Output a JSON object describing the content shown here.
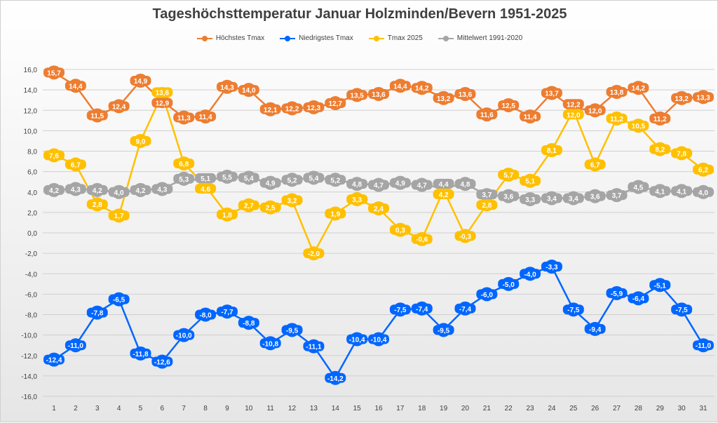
{
  "chart_data": {
    "type": "line",
    "title": "Tageshöchsttemperatur Januar Holzminden/Bevern 1951-2025",
    "xlabel": "",
    "ylabel": "",
    "x": [
      1,
      2,
      3,
      4,
      5,
      6,
      7,
      8,
      9,
      10,
      11,
      12,
      13,
      14,
      15,
      16,
      17,
      18,
      19,
      20,
      21,
      22,
      23,
      24,
      25,
      26,
      27,
      28,
      29,
      30,
      31
    ],
    "ylim": [
      -16,
      16
    ],
    "yticks": [
      "16,0",
      "14,0",
      "12,0",
      "10,0",
      "8,0",
      "6,0",
      "4,0",
      "2,0",
      "0,0",
      "-2,0",
      "-4,0",
      "-6,0",
      "-8,0",
      "-10,0",
      "-12,0",
      "-14,0",
      "-16,0"
    ],
    "grid": true,
    "legend_position": "top",
    "series": [
      {
        "name": "Höchstes Tmax",
        "color": "#ED7D31",
        "values": [
          15.7,
          14.4,
          11.5,
          12.4,
          14.9,
          12.9,
          11.3,
          11.4,
          14.3,
          14.0,
          12.1,
          12.2,
          12.3,
          12.7,
          13.5,
          13.6,
          14.4,
          14.2,
          13.2,
          13.6,
          11.6,
          12.5,
          11.4,
          13.7,
          12.2,
          12.0,
          13.8,
          14.2,
          11.2,
          13.2,
          13.3
        ]
      },
      {
        "name": "Niedrigstes Tmax",
        "color": "#0066FF",
        "values": [
          -12.4,
          -11.0,
          -7.8,
          -6.5,
          -11.8,
          -12.6,
          -10.0,
          -8.0,
          -7.7,
          -8.8,
          -10.8,
          -9.5,
          -11.1,
          -14.2,
          -10.4,
          -10.4,
          -7.5,
          -7.4,
          -9.5,
          -7.4,
          -6.0,
          -5.0,
          -4.0,
          -3.3,
          -7.5,
          -9.4,
          -5.9,
          -6.4,
          -5.1,
          -7.5,
          -11.0
        ]
      },
      {
        "name": "Tmax 2025",
        "color": "#FFC000",
        "values": [
          7.6,
          6.7,
          2.8,
          1.7,
          9.0,
          13.6,
          6.8,
          4.6,
          1.8,
          2.7,
          2.5,
          3.2,
          -2.0,
          1.9,
          3.3,
          2.4,
          0.3,
          -0.6,
          4.2,
          -0.3,
          2.8,
          5.7,
          5.1,
          8.1,
          12.0,
          6.7,
          11.2,
          10.5,
          8.2,
          7.8,
          6.2
        ]
      },
      {
        "name": "Mittelwert 1991-2020",
        "color": "#A5A5A5",
        "values": [
          4.2,
          4.3,
          4.2,
          4.0,
          4.2,
          4.3,
          5.3,
          5.1,
          5.5,
          5.4,
          4.9,
          5.2,
          5.4,
          5.2,
          4.8,
          4.7,
          4.9,
          4.7,
          4.4,
          4.8,
          3.7,
          3.6,
          3.3,
          3.4,
          3.4,
          3.6,
          3.7,
          4.5,
          4.1,
          4.1,
          4.0
        ]
      }
    ]
  }
}
